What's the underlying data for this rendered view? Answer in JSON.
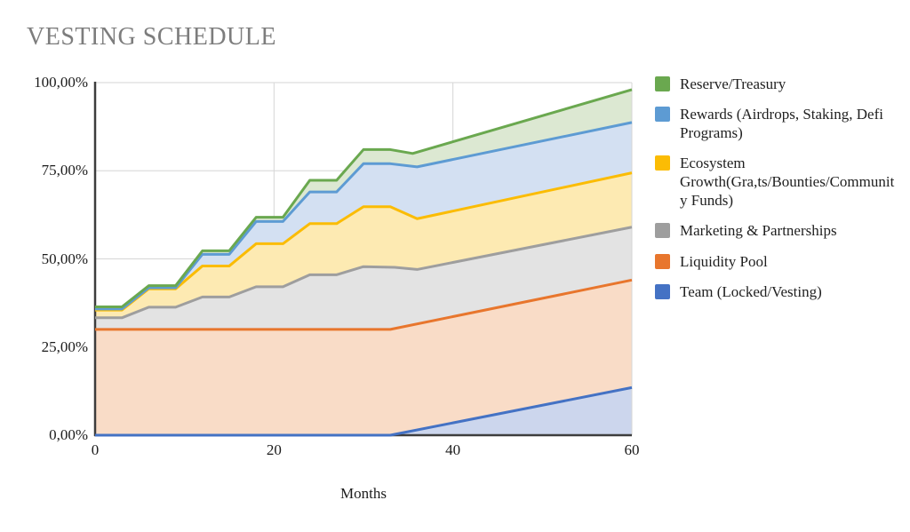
{
  "chart_data": {
    "type": "area",
    "stacked": true,
    "title": "VESTING SCHEDULE",
    "xlabel": "Months",
    "ylabel": "",
    "xlim": [
      0,
      60
    ],
    "ylim": [
      0,
      100
    ],
    "grid": true,
    "legend_position": "right",
    "x_ticks": [
      0,
      20,
      40,
      60
    ],
    "y_ticks": [
      "0,00%",
      "25,00%",
      "50,00%",
      "75,00%",
      "100,00%"
    ],
    "y_gridline_percents": [
      0,
      25,
      50,
      75,
      100
    ],
    "values_are": "cumulative_stack_top_percent_by_month",
    "series": [
      {
        "key": "team",
        "label": "Team (Locked/Vesting)",
        "line_color": "#4472c4",
        "fill_color": "#ccd6ed",
        "points": [
          [
            0,
            0
          ],
          [
            33,
            0
          ],
          [
            60,
            13.5
          ]
        ]
      },
      {
        "key": "liquidity",
        "label": "Liquidity Pool",
        "line_color": "#e8762d",
        "fill_color": "#f9dcc7",
        "points": [
          [
            0,
            30
          ],
          [
            33,
            30
          ],
          [
            60,
            44
          ]
        ]
      },
      {
        "key": "marketing",
        "label": "Marketing & Partnerships",
        "line_color": "#9e9e9e",
        "fill_color": "#e3e3e3",
        "points": [
          [
            0,
            33.3
          ],
          [
            3,
            33.3
          ],
          [
            6,
            36.3
          ],
          [
            9,
            36.3
          ],
          [
            12,
            39.2
          ],
          [
            15,
            39.2
          ],
          [
            18,
            42.1
          ],
          [
            21,
            42.1
          ],
          [
            24,
            45.5
          ],
          [
            27,
            45.5
          ],
          [
            30,
            47.8
          ],
          [
            33.5,
            47.6
          ],
          [
            36,
            47
          ],
          [
            60,
            59
          ]
        ]
      },
      {
        "key": "ecosystem",
        "label": "Ecosystem Growth(Gra,ts/Bounties/Community Funds)",
        "line_color": "#fbbc04",
        "fill_color": "#fdeab2",
        "points": [
          [
            0,
            35.5
          ],
          [
            3,
            35.5
          ],
          [
            6,
            41.5
          ],
          [
            9,
            41.5
          ],
          [
            12,
            48
          ],
          [
            15,
            48
          ],
          [
            18,
            54.3
          ],
          [
            21,
            54.3
          ],
          [
            24,
            60
          ],
          [
            27,
            60
          ],
          [
            30,
            64.8
          ],
          [
            33,
            64.8
          ],
          [
            36,
            61.4
          ],
          [
            60,
            74.4
          ]
        ]
      },
      {
        "key": "rewards",
        "label": "Rewards (Airdrops, Staking, Defi Programs)",
        "line_color": "#5d9bd3",
        "fill_color": "#d3e0f2",
        "points": [
          [
            0,
            35.8
          ],
          [
            3,
            35.8
          ],
          [
            6,
            41.8
          ],
          [
            9,
            41.8
          ],
          [
            12,
            51.3
          ],
          [
            15,
            51.3
          ],
          [
            18,
            60.6
          ],
          [
            21,
            60.6
          ],
          [
            24,
            69
          ],
          [
            27,
            69
          ],
          [
            30,
            77
          ],
          [
            33,
            77
          ],
          [
            36,
            76.1
          ],
          [
            60,
            88.7
          ]
        ]
      },
      {
        "key": "reserve",
        "label": "Reserve/Treasury",
        "line_color": "#6aa84f",
        "fill_color": "#dce8d2",
        "points": [
          [
            0,
            36.4
          ],
          [
            3,
            36.4
          ],
          [
            6,
            42.4
          ],
          [
            9,
            42.4
          ],
          [
            12,
            52.3
          ],
          [
            15,
            52.3
          ],
          [
            18,
            61.8
          ],
          [
            21,
            61.8
          ],
          [
            24,
            72.3
          ],
          [
            27,
            72.3
          ],
          [
            30,
            81
          ],
          [
            33,
            81
          ],
          [
            35.5,
            79.9
          ],
          [
            60,
            98
          ]
        ]
      }
    ],
    "colors": {
      "gridline": "#d6d6d6",
      "axis": "#3d3d3d",
      "title_text": "#7d7d7d",
      "tick_text": "#1c1c1c"
    }
  }
}
